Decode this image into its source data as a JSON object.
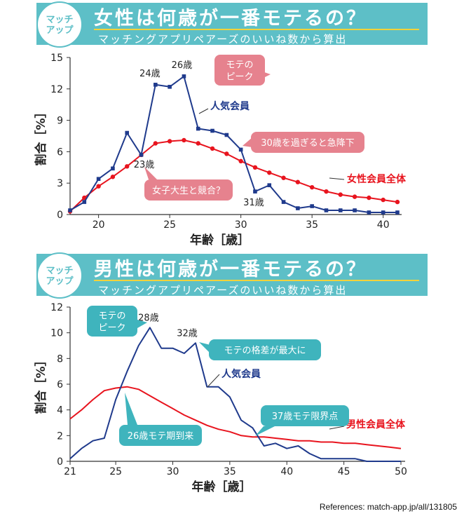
{
  "top": {
    "badge_line1": "マッチ",
    "badge_line2": "アップ",
    "title": "女性は何歳が一番モテるの？",
    "subtitle": "マッチングアプリペアーズのいいね数から算出"
  },
  "bottom": {
    "badge_line1": "マッチ",
    "badge_line2": "アップ",
    "title": "男性は何歳が一番モテるの？",
    "subtitle": "マッチングアプリペアーズのいいね数から算出"
  },
  "reference": "References: match-app.jp/all/131805",
  "colors": {
    "popular": "#1f3a8c",
    "overall": "#e8141e",
    "banner": "#5dbfc7",
    "pink_bubble": "#e6828e",
    "teal_bubble": "#3fb4bd"
  },
  "chart_data": [
    {
      "type": "line",
      "title": "",
      "xlabel": "年齢［歳］",
      "ylabel": "割合［%］",
      "xlim": [
        18,
        41
      ],
      "ylim": [
        0,
        15
      ],
      "xticks": [
        20,
        25,
        30,
        35,
        40
      ],
      "yticks": [
        0,
        3,
        6,
        9,
        12,
        15
      ],
      "grid": false,
      "series": [
        {
          "name": "人気会員",
          "color": "#1f3a8c",
          "markers": true,
          "x": [
            18,
            19,
            20,
            21,
            22,
            23,
            24,
            25,
            26,
            27,
            28,
            29,
            30,
            31,
            32,
            33,
            34,
            35,
            36,
            37,
            38,
            39,
            40,
            41
          ],
          "y": [
            0.4,
            1.2,
            3.4,
            4.4,
            7.8,
            5.7,
            12.4,
            12.2,
            13.2,
            8.2,
            8.0,
            7.6,
            6.2,
            2.2,
            2.8,
            1.2,
            0.6,
            0.8,
            0.4,
            0.4,
            0.4,
            0.2,
            0.2,
            0.2
          ]
        },
        {
          "name": "女性会員全体",
          "color": "#e8141e",
          "markers": true,
          "x": [
            18,
            19,
            20,
            21,
            22,
            23,
            24,
            25,
            26,
            27,
            28,
            29,
            30,
            31,
            32,
            33,
            34,
            35,
            36,
            37,
            38,
            39,
            40,
            41
          ],
          "y": [
            0.3,
            1.6,
            2.7,
            3.6,
            4.6,
            5.7,
            6.8,
            7.0,
            7.1,
            6.8,
            6.3,
            5.8,
            5.1,
            4.5,
            4.0,
            3.5,
            3.1,
            2.6,
            2.2,
            1.9,
            1.7,
            1.6,
            1.4,
            1.2
          ]
        }
      ],
      "annotations": [
        {
          "text": "24歳",
          "x": 24,
          "y": 12.4
        },
        {
          "text": "26歳",
          "x": 26,
          "y": 13.2
        },
        {
          "text": "23歳",
          "x": 23,
          "y": 5.7
        },
        {
          "text": "31歳",
          "x": 31,
          "y": 2.2
        }
      ],
      "callouts": [
        "モテの\nピーク",
        "30歳を過ぎると急降下",
        "女子大生と競合？"
      ]
    },
    {
      "type": "line",
      "title": "",
      "xlabel": "年齢［歳］",
      "ylabel": "割合［%］",
      "xlim": [
        21,
        50
      ],
      "ylim": [
        0,
        12
      ],
      "xticks": [
        21,
        25,
        30,
        35,
        40,
        45,
        50
      ],
      "yticks": [
        0,
        2,
        4,
        6,
        8,
        10,
        12
      ],
      "grid": false,
      "series": [
        {
          "name": "人気会員",
          "color": "#1f3a8c",
          "markers": false,
          "x": [
            21,
            22,
            23,
            24,
            25,
            26,
            27,
            28,
            29,
            30,
            31,
            32,
            33,
            34,
            35,
            36,
            37,
            38,
            39,
            40,
            41,
            42,
            43,
            44,
            45,
            46,
            47,
            48,
            49,
            50
          ],
          "y": [
            0.2,
            1.0,
            1.6,
            1.8,
            4.8,
            7.0,
            9.0,
            10.4,
            8.8,
            8.8,
            8.4,
            9.2,
            5.8,
            5.8,
            5.0,
            3.2,
            2.6,
            1.2,
            1.4,
            1.0,
            1.2,
            0.6,
            0.2,
            0.2,
            0.2,
            0.2,
            0.0,
            0.0,
            0.0,
            0.0
          ]
        },
        {
          "name": "男性会員全体",
          "color": "#e8141e",
          "markers": false,
          "x": [
            21,
            22,
            23,
            24,
            25,
            26,
            27,
            28,
            29,
            30,
            31,
            32,
            33,
            34,
            35,
            36,
            37,
            38,
            39,
            40,
            41,
            42,
            43,
            44,
            45,
            46,
            47,
            48,
            49,
            50
          ],
          "y": [
            3.3,
            4.0,
            4.8,
            5.5,
            5.7,
            5.8,
            5.6,
            5.1,
            4.6,
            4.1,
            3.6,
            3.2,
            2.8,
            2.5,
            2.3,
            2.0,
            1.9,
            1.9,
            1.8,
            1.7,
            1.6,
            1.6,
            1.5,
            1.5,
            1.4,
            1.4,
            1.3,
            1.2,
            1.1,
            1.0
          ]
        }
      ],
      "annotations": [
        {
          "text": "28歳",
          "x": 28,
          "y": 10.4
        },
        {
          "text": "32歳",
          "x": 32,
          "y": 9.2
        }
      ],
      "callouts": [
        "モテの\nピーク",
        "モテの格差が最大に",
        "26歳モテ期到来",
        "37歳モテ限界点"
      ]
    }
  ]
}
